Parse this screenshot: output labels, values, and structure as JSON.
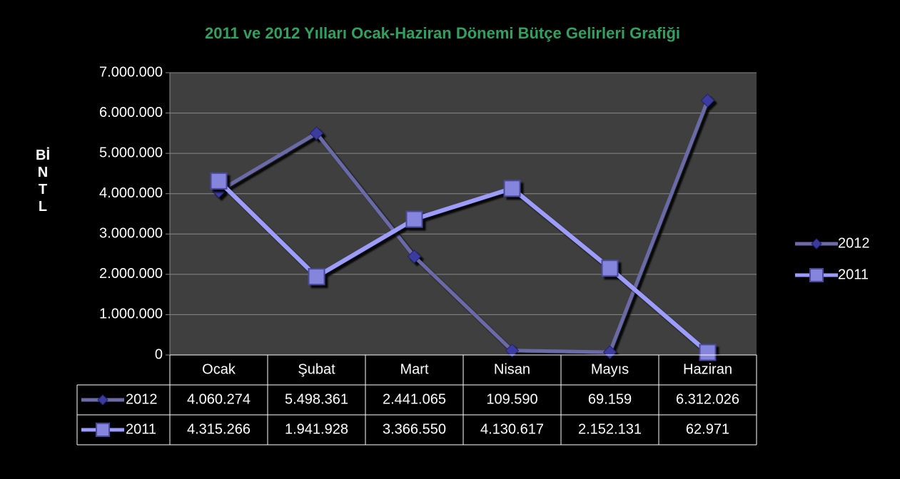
{
  "chart_data": {
    "type": "line",
    "title": "2011 ve 2012 Yılları Ocak-Haziran Dönemi Bütçe Gelirleri Grafiği",
    "y_label": "BİN TL",
    "categories": [
      "Ocak",
      "Şubat",
      "Mart",
      "Nisan",
      "Mayıs",
      "Haziran"
    ],
    "series": [
      {
        "name": "2012",
        "color": "#6b6ba8",
        "marker": "diamond",
        "marker_color": "#3a3aa0",
        "values": [
          4060274,
          5498361,
          2441065,
          109590,
          69159,
          6312026
        ],
        "value_labels": [
          "4.060.274",
          "5.498.361",
          "2.441.065",
          "109.590",
          "69.159",
          "6.312.026"
        ]
      },
      {
        "name": "2011",
        "color": "#9c9cff",
        "marker": "square",
        "marker_color": "#8585dd",
        "values": [
          4315266,
          1941928,
          3366550,
          4130617,
          2152131,
          62971
        ],
        "value_labels": [
          "4.315.266",
          "1.941.928",
          "3.366.550",
          "4.130.617",
          "2.152.131",
          "62.971"
        ]
      }
    ],
    "ylim": [
      0,
      7000000
    ],
    "yticks": [
      0,
      {
        "value": 1000000,
        "label": "1.000.000"
      },
      {
        "value": 2000000,
        "label": "2.000.000"
      },
      {
        "value": 3000000,
        "label": "3.000.000"
      },
      {
        "value": 4000000,
        "label": "4.000.000"
      },
      {
        "value": 5000000,
        "label": "5.000.000"
      },
      {
        "value": 6000000,
        "label": "6.000.000"
      },
      {
        "value": 7000000,
        "label": "7.000.000"
      }
    ],
    "grid": true,
    "legend": "right",
    "data_table": true
  }
}
